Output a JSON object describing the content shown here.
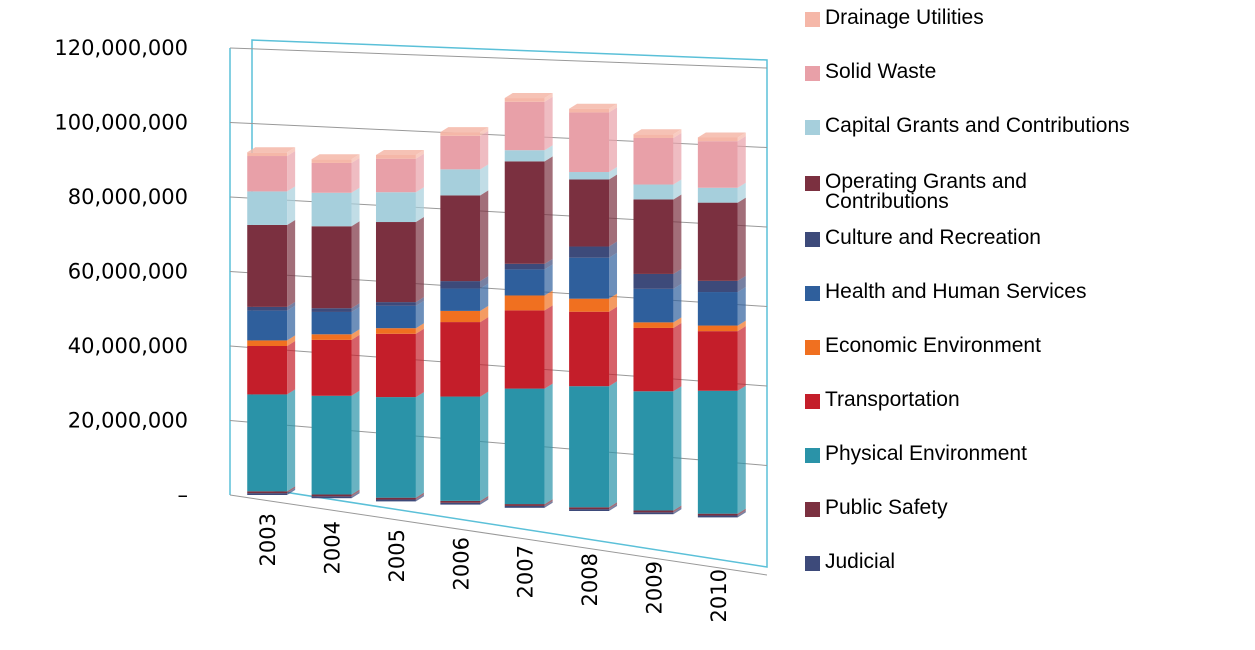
{
  "chart_data": {
    "type": "bar",
    "stacked": true,
    "categories": [
      "2003",
      "2004",
      "2005",
      "2006",
      "2007",
      "2008",
      "2009",
      "2010"
    ],
    "ylim": [
      0,
      120000000
    ],
    "yticks": [
      {
        "value": 0,
        "label": "–"
      },
      {
        "value": 20000000,
        "label": "20,000,000"
      },
      {
        "value": 40000000,
        "label": "40,000,000"
      },
      {
        "value": 60000000,
        "label": "60,000,000"
      },
      {
        "value": 80000000,
        "label": "80,000,000"
      },
      {
        "value": 100000000,
        "label": "100,000,000"
      },
      {
        "value": 120000000,
        "label": "120,000,000"
      }
    ],
    "grid": true,
    "series": [
      {
        "name": "Judicial",
        "color": "#3d4a7a",
        "values": [
          500000,
          500000,
          500000,
          500000,
          500000,
          500000,
          500000,
          500000
        ]
      },
      {
        "name": "Public Safety",
        "color": "#7b3040",
        "values": [
          500000,
          500000,
          500000,
          500000,
          500000,
          500000,
          500000,
          500000
        ]
      },
      {
        "name": "Physical Environment",
        "color": "#2a93a8",
        "values": [
          26000000,
          26500000,
          27000000,
          28000000,
          31000000,
          32500000,
          32000000,
          33000000
        ]
      },
      {
        "name": "Transportation",
        "color": "#c41e2a",
        "values": [
          13000000,
          15000000,
          17000000,
          20000000,
          21000000,
          20000000,
          17000000,
          16000000
        ]
      },
      {
        "name": "Economic Environment",
        "color": "#f07020",
        "values": [
          1500000,
          1500000,
          1500000,
          3000000,
          4000000,
          3500000,
          1500000,
          1500000
        ]
      },
      {
        "name": "Health and Human Services",
        "color": "#2f5f9c",
        "values": [
          8000000,
          6000000,
          6000000,
          6000000,
          7000000,
          11000000,
          9000000,
          9000000
        ]
      },
      {
        "name": "Culture and Recreation",
        "color": "#3d4a7a",
        "values": [
          1000000,
          1000000,
          1000000,
          2000000,
          1500000,
          3000000,
          4000000,
          3000000
        ]
      },
      {
        "name": "Operating Grants and Contributions",
        "color": "#7b3040",
        "values": [
          22000000,
          22000000,
          21500000,
          23000000,
          27500000,
          18000000,
          20000000,
          21000000
        ]
      },
      {
        "name": "Capital Grants and Contributions",
        "color": "#a6cfdc",
        "values": [
          9000000,
          9000000,
          8000000,
          7000000,
          3000000,
          2000000,
          4000000,
          4000000
        ]
      },
      {
        "name": "Solid Waste",
        "color": "#e8a0a8",
        "values": [
          9500000,
          8000000,
          9000000,
          9000000,
          13000000,
          16000000,
          12500000,
          12500000
        ]
      },
      {
        "name": "Drainage Utilities",
        "color": "#f5b7a8",
        "values": [
          1000000,
          1000000,
          1000000,
          1000000,
          1000000,
          1000000,
          1000000,
          1000000
        ]
      }
    ]
  }
}
